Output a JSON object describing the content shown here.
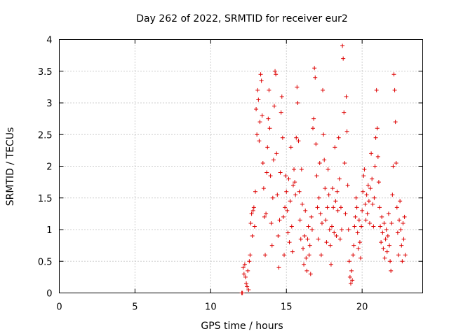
{
  "chart_data": {
    "type": "scatter",
    "title": "Day 262 of 2022, SRMTID for receiver eur2",
    "xlabel": "GPS time / hours",
    "ylabel": "SRMTID / TECUs",
    "xlim": [
      0,
      24
    ],
    "ylim": [
      0,
      4
    ],
    "xticks": [
      0,
      5,
      10,
      15,
      20
    ],
    "yticks": [
      0,
      0.5,
      1,
      1.5,
      2,
      2.5,
      3,
      3.5,
      4
    ],
    "xtick_labels": [
      "0",
      "5",
      "10",
      "15",
      "20"
    ],
    "ytick_labels": [
      "0",
      "0.5",
      "1",
      "1.5",
      "2",
      "2.5",
      "3",
      "3.5",
      "4"
    ],
    "marker": "+",
    "color": "#dd0000",
    "grid": true,
    "legend": "none",
    "series": [
      {
        "name": "eur2",
        "points": [
          [
            12.05,
            0.0
          ],
          [
            12.1,
            0.0
          ],
          [
            12.15,
            0.4
          ],
          [
            12.2,
            0.3
          ],
          [
            12.25,
            0.45
          ],
          [
            12.3,
            0.25
          ],
          [
            12.35,
            0.15
          ],
          [
            12.4,
            0.1
          ],
          [
            12.45,
            0.35
          ],
          [
            12.5,
            0.05
          ],
          [
            12.55,
            0.5
          ],
          [
            12.6,
            0.6
          ],
          [
            12.65,
            1.1
          ],
          [
            12.7,
            1.25
          ],
          [
            12.75,
            0.9
          ],
          [
            12.8,
            1.3
          ],
          [
            12.85,
            1.35
          ],
          [
            12.9,
            1.05
          ],
          [
            12.95,
            1.6
          ],
          [
            13.0,
            2.9
          ],
          [
            13.05,
            2.5
          ],
          [
            13.1,
            3.2
          ],
          [
            13.15,
            3.05
          ],
          [
            13.2,
            2.4
          ],
          [
            13.25,
            2.7
          ],
          [
            13.3,
            3.45
          ],
          [
            13.35,
            3.35
          ],
          [
            13.4,
            2.8
          ],
          [
            13.45,
            2.05
          ],
          [
            13.5,
            1.65
          ],
          [
            13.55,
            1.2
          ],
          [
            13.6,
            0.6
          ],
          [
            13.65,
            1.25
          ],
          [
            13.7,
            1.9
          ],
          [
            13.75,
            2.3
          ],
          [
            13.8,
            2.75
          ],
          [
            13.85,
            3.2
          ],
          [
            13.9,
            2.6
          ],
          [
            13.95,
            1.85
          ],
          [
            14.0,
            1.1
          ],
          [
            14.05,
            0.75
          ],
          [
            14.1,
            1.5
          ],
          [
            14.15,
            2.1
          ],
          [
            14.2,
            2.95
          ],
          [
            14.25,
            3.5
          ],
          [
            14.3,
            3.45
          ],
          [
            14.35,
            2.2
          ],
          [
            14.4,
            1.55
          ],
          [
            14.45,
            0.9
          ],
          [
            14.5,
            0.4
          ],
          [
            14.55,
            1.15
          ],
          [
            14.6,
            1.9
          ],
          [
            14.65,
            2.85
          ],
          [
            14.7,
            3.1
          ],
          [
            14.75,
            2.45
          ],
          [
            14.8,
            1.2
          ],
          [
            14.85,
            0.6
          ],
          [
            14.9,
            1.35
          ],
          [
            14.95,
            1.85
          ],
          [
            15.0,
            1.6
          ],
          [
            15.05,
            1.3
          ],
          [
            15.1,
            0.95
          ],
          [
            15.15,
            1.8
          ],
          [
            15.2,
            0.8
          ],
          [
            15.25,
            1.45
          ],
          [
            15.3,
            2.3
          ],
          [
            15.35,
            1.05
          ],
          [
            15.4,
            0.65
          ],
          [
            15.45,
            1.7
          ],
          [
            15.5,
            1.95
          ],
          [
            15.55,
            1.75
          ],
          [
            15.6,
            1.55
          ],
          [
            15.65,
            2.45
          ],
          [
            15.7,
            3.25
          ],
          [
            15.75,
            3.0
          ],
          [
            15.8,
            2.4
          ],
          [
            15.85,
            1.6
          ],
          [
            15.9,
            1.15
          ],
          [
            15.95,
            0.85
          ],
          [
            16.0,
            1.95
          ],
          [
            16.05,
            1.4
          ],
          [
            16.1,
            0.7
          ],
          [
            16.15,
            0.45
          ],
          [
            16.2,
            0.9
          ],
          [
            16.25,
            1.3
          ],
          [
            16.3,
            0.55
          ],
          [
            16.35,
            0.35
          ],
          [
            16.4,
            0.85
          ],
          [
            16.45,
            1.05
          ],
          [
            16.5,
            0.6
          ],
          [
            16.55,
            0.75
          ],
          [
            16.6,
            0.3
          ],
          [
            16.65,
            1.2
          ],
          [
            16.7,
            1.0
          ],
          [
            16.75,
            2.6
          ],
          [
            16.8,
            2.75
          ],
          [
            16.85,
            3.55
          ],
          [
            16.9,
            3.4
          ],
          [
            16.95,
            2.35
          ],
          [
            17.0,
            1.85
          ],
          [
            17.05,
            1.35
          ],
          [
            17.1,
            0.85
          ],
          [
            17.15,
            1.5
          ],
          [
            17.2,
            2.05
          ],
          [
            17.25,
            1.25
          ],
          [
            17.3,
            0.6
          ],
          [
            17.35,
            1.1
          ],
          [
            17.4,
            3.2
          ],
          [
            17.45,
            2.5
          ],
          [
            17.5,
            2.1
          ],
          [
            17.55,
            1.65
          ],
          [
            17.6,
            1.15
          ],
          [
            17.65,
            0.8
          ],
          [
            17.7,
            1.35
          ],
          [
            17.75,
            1.95
          ],
          [
            17.8,
            1.55
          ],
          [
            17.85,
            1.0
          ],
          [
            17.9,
            0.75
          ],
          [
            17.95,
            0.45
          ],
          [
            18.0,
            1.05
          ],
          [
            18.05,
            1.65
          ],
          [
            18.1,
            1.35
          ],
          [
            18.15,
            0.95
          ],
          [
            18.2,
            2.3
          ],
          [
            18.25,
            1.45
          ],
          [
            18.3,
            0.9
          ],
          [
            18.35,
            1.6
          ],
          [
            18.4,
            1.3
          ],
          [
            18.45,
            2.45
          ],
          [
            18.5,
            1.8
          ],
          [
            18.55,
            0.85
          ],
          [
            18.6,
            1.35
          ],
          [
            18.65,
            1.0
          ],
          [
            18.7,
            3.9
          ],
          [
            18.75,
            3.7
          ],
          [
            18.8,
            2.85
          ],
          [
            18.85,
            2.05
          ],
          [
            18.9,
            1.25
          ],
          [
            18.95,
            3.1
          ],
          [
            19.0,
            2.55
          ],
          [
            19.05,
            1.7
          ],
          [
            19.1,
            1.0
          ],
          [
            19.15,
            0.5
          ],
          [
            19.2,
            0.25
          ],
          [
            19.25,
            0.15
          ],
          [
            19.3,
            0.35
          ],
          [
            19.35,
            0.2
          ],
          [
            19.4,
            0.6
          ],
          [
            19.45,
            0.75
          ],
          [
            19.5,
            1.05
          ],
          [
            19.55,
            1.2
          ],
          [
            19.6,
            1.5
          ],
          [
            19.65,
            1.35
          ],
          [
            19.7,
            0.95
          ],
          [
            19.75,
            0.7
          ],
          [
            19.8,
            1.15
          ],
          [
            19.85,
            0.8
          ],
          [
            19.9,
            0.55
          ],
          [
            19.95,
            1.05
          ],
          [
            20.0,
            1.3
          ],
          [
            20.05,
            1.6
          ],
          [
            20.1,
            1.85
          ],
          [
            20.15,
            1.95
          ],
          [
            20.2,
            1.4
          ],
          [
            20.25,
            1.15
          ],
          [
            20.3,
            1.55
          ],
          [
            20.35,
            1.25
          ],
          [
            20.4,
            1.7
          ],
          [
            20.45,
            1.45
          ],
          [
            20.5,
            1.1
          ],
          [
            20.55,
            1.65
          ],
          [
            20.6,
            2.2
          ],
          [
            20.65,
            1.8
          ],
          [
            20.7,
            1.4
          ],
          [
            20.75,
            1.05
          ],
          [
            20.8,
            1.5
          ],
          [
            20.85,
            2.0
          ],
          [
            20.9,
            2.45
          ],
          [
            20.95,
            3.2
          ],
          [
            21.0,
            2.6
          ],
          [
            21.05,
            2.15
          ],
          [
            21.1,
            1.75
          ],
          [
            21.15,
            1.35
          ],
          [
            21.2,
            1.05
          ],
          [
            21.25,
            0.8
          ],
          [
            21.3,
            1.2
          ],
          [
            21.35,
            0.95
          ],
          [
            21.4,
            0.7
          ],
          [
            21.45,
            1.1
          ],
          [
            21.5,
            0.55
          ],
          [
            21.55,
            0.85
          ],
          [
            21.6,
            1.0
          ],
          [
            21.65,
            0.65
          ],
          [
            21.7,
            0.9
          ],
          [
            21.75,
            1.25
          ],
          [
            21.8,
            0.75
          ],
          [
            21.85,
            0.5
          ],
          [
            21.9,
            0.35
          ],
          [
            21.95,
            1.1
          ],
          [
            22.0,
            1.55
          ],
          [
            22.05,
            2.0
          ],
          [
            22.1,
            3.45
          ],
          [
            22.15,
            3.2
          ],
          [
            22.2,
            2.7
          ],
          [
            22.25,
            2.05
          ],
          [
            22.3,
            1.35
          ],
          [
            22.35,
            0.95
          ],
          [
            22.4,
            0.6
          ],
          [
            22.45,
            1.15
          ],
          [
            22.5,
            1.45
          ],
          [
            22.55,
            1.0
          ],
          [
            22.6,
            0.75
          ],
          [
            22.65,
            0.5
          ],
          [
            22.7,
            1.1
          ],
          [
            22.75,
            0.85
          ],
          [
            22.8,
            1.2
          ],
          [
            22.85,
            0.6
          ]
        ]
      }
    ]
  }
}
